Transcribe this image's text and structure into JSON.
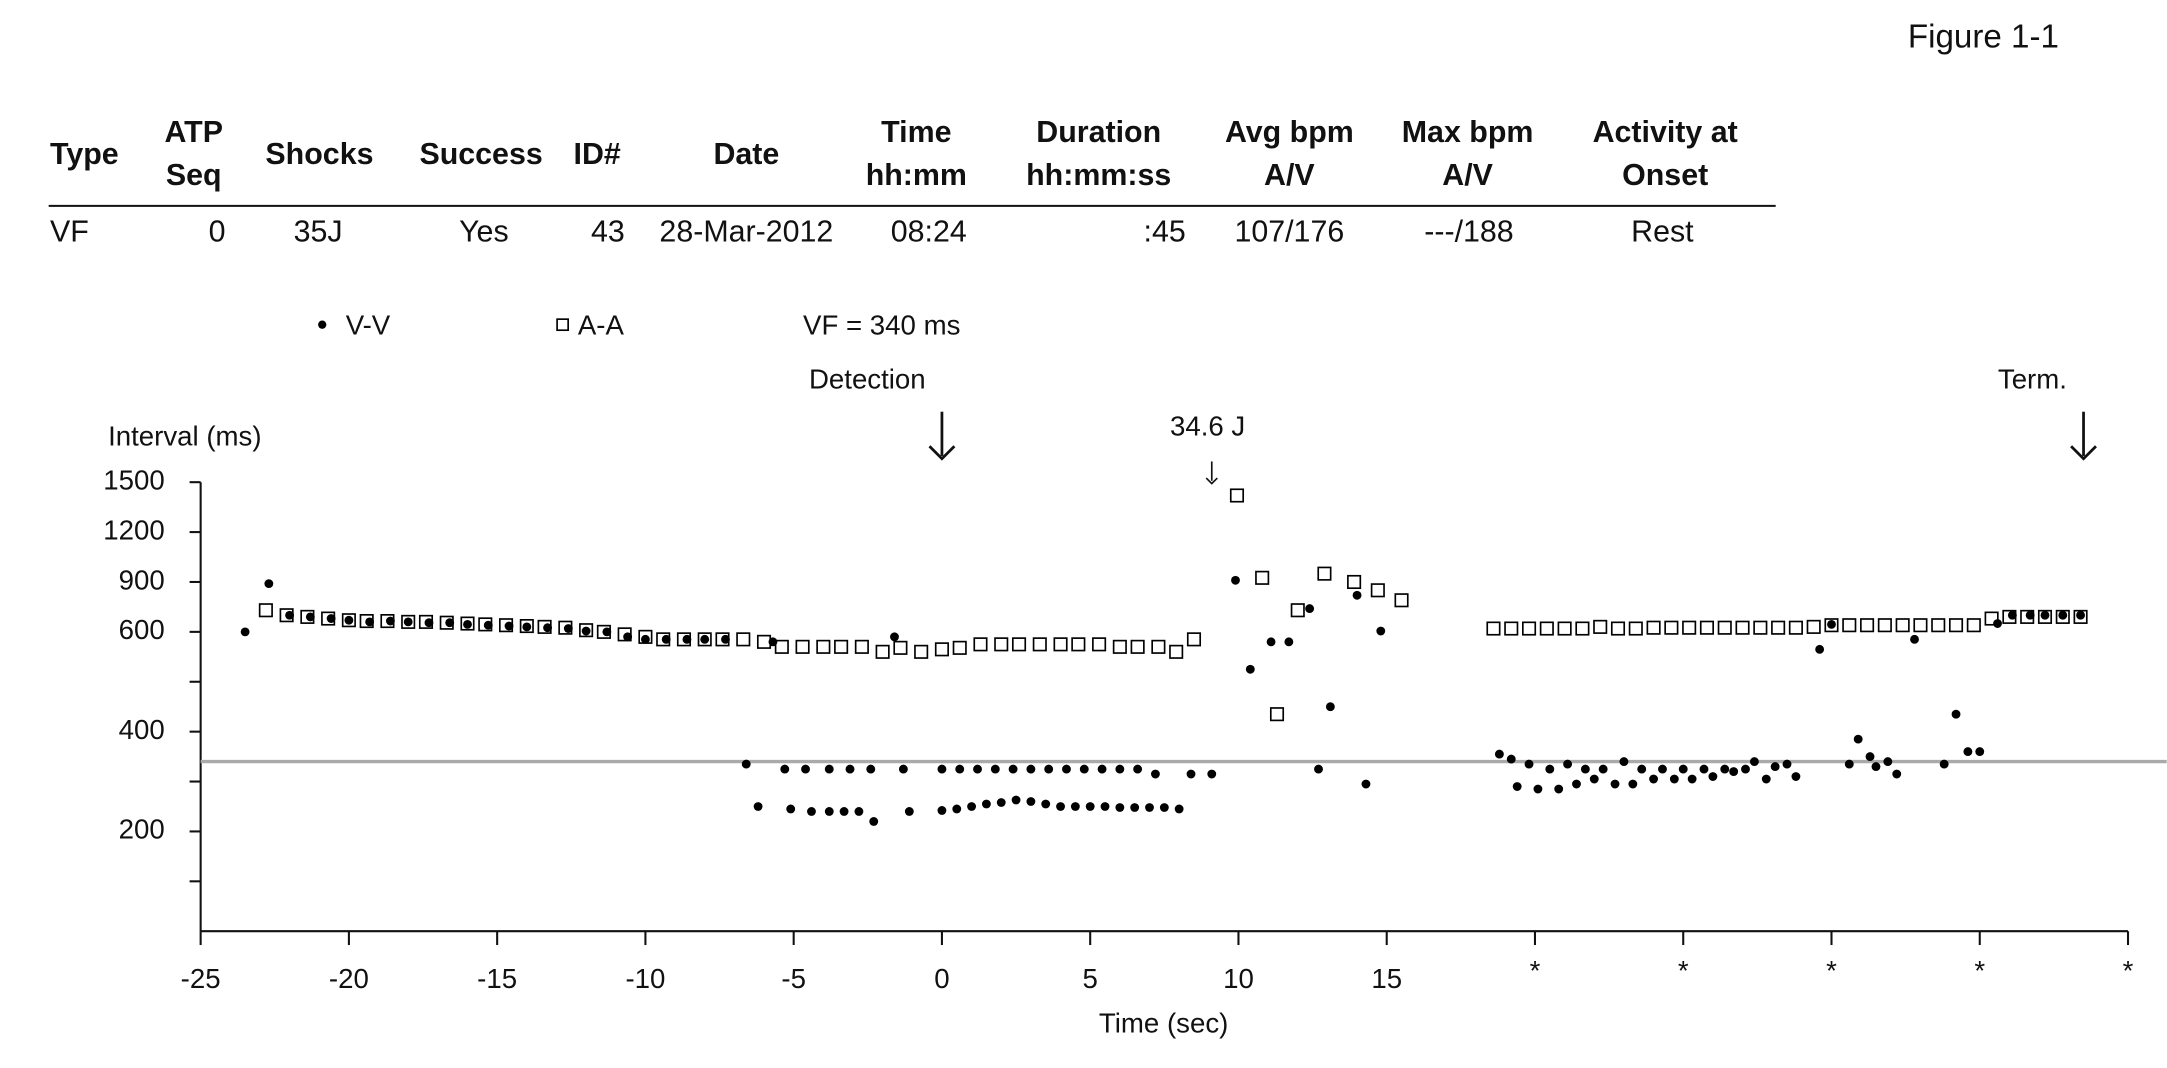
{
  "figure_label": "Figure 1-1",
  "table": {
    "headers": [
      [
        "Type"
      ],
      [
        "ATP",
        "Seq"
      ],
      [
        "Shocks"
      ],
      [
        "Success"
      ],
      [
        "ID#"
      ],
      [
        "Date"
      ],
      [
        "Time",
        "hh:mm"
      ],
      [
        "Duration",
        "hh:mm:ss"
      ],
      [
        "Avg bpm",
        "A/V"
      ],
      [
        "Max bpm",
        "A/V"
      ],
      [
        "Activity at",
        "Onset"
      ]
    ],
    "rows": [
      [
        "VF",
        "0",
        "35J",
        "Yes",
        "43",
        "28-Mar-2012",
        "08:24",
        ":45",
        "107/176",
        "---/188",
        "Rest"
      ]
    ]
  },
  "chart_data": {
    "type": "scatter",
    "ylabel": "Interval (ms)",
    "xlabel": "Time (sec)",
    "xlim": [
      -25,
      40
    ],
    "ylim": [
      0,
      1500
    ],
    "xticks": [
      -25,
      -20,
      -15,
      -10,
      -5,
      0,
      5,
      10,
      15,
      {
        "value": 20,
        "label": "*"
      },
      {
        "value": 25,
        "label": "*"
      },
      {
        "value": 30,
        "label": "*"
      },
      {
        "value": 35,
        "label": "*"
      },
      {
        "value": 40,
        "label": "*"
      }
    ],
    "yticks": [
      200,
      400,
      600,
      900,
      1200,
      1500
    ],
    "yminorticks": [
      100,
      300,
      500
    ],
    "reference_line": {
      "label": "VF = 340 ms",
      "value": 340,
      "color": "#aaaaaa"
    },
    "annotations": [
      {
        "text": "Detection",
        "x": 0
      },
      {
        "text": "34.6 J",
        "x": 9.1
      },
      {
        "text": "Term.",
        "x": 38.5
      }
    ],
    "series": [
      {
        "name": "V-V",
        "marker": "circle",
        "color": "#000000",
        "x": [
          -23.5,
          -22.7,
          -22.0,
          -21.3,
          -20.6,
          -20.0,
          -19.3,
          -18.6,
          -18.0,
          -17.3,
          -16.6,
          -16.0,
          -15.3,
          -14.6,
          -14.0,
          -13.3,
          -12.6,
          -12.0,
          -11.3,
          -10.6,
          -10.0,
          -9.3,
          -8.6,
          -8.0,
          -7.3,
          -6.6,
          -6.2,
          -5.7,
          -5.3,
          -5.1,
          -4.6,
          -4.4,
          -3.8,
          -3.8,
          -3.3,
          -3.1,
          -2.8,
          -2.4,
          -2.3,
          -1.6,
          -1.3,
          -1.1,
          0,
          0.6,
          1.2,
          1.8,
          2.4,
          3,
          3.6,
          4.2,
          4.8,
          5.4,
          6,
          6.6,
          7.2,
          0,
          0.5,
          1,
          1.5,
          2,
          2.5,
          3,
          3.5,
          4,
          4.5,
          5,
          5.5,
          6,
          6.5,
          7,
          7.5,
          8.0,
          8.4,
          9.1,
          9.9,
          10.4,
          11.1,
          11.7,
          12.4,
          12.7,
          13.1,
          14.0,
          14.3,
          14.8,
          18.8,
          19.2,
          19.4,
          19.8,
          20.1,
          20.5,
          20.8,
          21.1,
          21.4,
          21.7,
          22.0,
          22.3,
          22.7,
          23.0,
          23.3,
          23.6,
          24.0,
          24.3,
          24.7,
          25.0,
          25.3,
          25.7,
          26.0,
          26.4,
          26.7,
          27.1,
          27.4,
          27.8,
          28.1,
          28.5,
          28.8,
          29.6,
          30.0,
          30.6,
          30.9,
          31.3,
          31.5,
          31.9,
          32.2,
          32.8,
          33.8,
          34.2,
          34.6,
          35.0,
          35.6,
          36.1,
          36.7,
          37.2,
          37.8,
          38.4
        ],
        "values": [
          600,
          890,
          700,
          690,
          680,
          670,
          660,
          665,
          660,
          655,
          655,
          645,
          640,
          635,
          630,
          625,
          620,
          605,
          600,
          590,
          585,
          585,
          585,
          585,
          585,
          335,
          250,
          580,
          325,
          245,
          325,
          240,
          325,
          240,
          240,
          325,
          240,
          325,
          220,
          590,
          325,
          240,
          325,
          325,
          325,
          325,
          325,
          325,
          325,
          325,
          325,
          325,
          325,
          325,
          315,
          242,
          245,
          250,
          255,
          258,
          263,
          260,
          255,
          250,
          250,
          250,
          250,
          248,
          248,
          248,
          248,
          245,
          315,
          315,
          910,
          525,
          580,
          580,
          740,
          325,
          450,
          820,
          295,
          605,
          355,
          345,
          290,
          335,
          285,
          325,
          285,
          335,
          295,
          325,
          305,
          325,
          295,
          340,
          295,
          325,
          305,
          325,
          305,
          325,
          305,
          325,
          310,
          325,
          320,
          325,
          340,
          305,
          330,
          335,
          310,
          565,
          645,
          335,
          385,
          350,
          330,
          340,
          315,
          585,
          335,
          435,
          360,
          360,
          650,
          700,
          700,
          700,
          700,
          700
        ]
      },
      {
        "name": "A-A",
        "marker": "square",
        "color": "#000000",
        "x": [
          -22.8,
          -22.1,
          -21.4,
          -20.7,
          -20.0,
          -19.4,
          -18.7,
          -18.0,
          -17.4,
          -16.7,
          -16.0,
          -15.4,
          -14.7,
          -14.0,
          -13.4,
          -12.7,
          -12.0,
          -11.4,
          -10.7,
          -10.0,
          -9.4,
          -8.7,
          -8.0,
          -7.4,
          -6.7,
          -6.0,
          -5.4,
          -4.7,
          -4.0,
          -3.4,
          -2.7,
          -2.0,
          -1.4,
          -0.7,
          0.0,
          0.6,
          1.3,
          2.0,
          2.6,
          3.3,
          4.0,
          4.6,
          5.3,
          6.0,
          6.6,
          7.3,
          7.9,
          8.5,
          9.95,
          10.8,
          11.3,
          12.0,
          12.9,
          13.9,
          14.7,
          15.5,
          18.6,
          19.2,
          19.8,
          20.4,
          21.0,
          21.6,
          22.2,
          22.8,
          23.4,
          24.0,
          24.6,
          25.2,
          25.8,
          26.4,
          27.0,
          27.6,
          28.2,
          28.8,
          29.4,
          30.0,
          30.6,
          31.2,
          31.8,
          32.4,
          33.0,
          33.6,
          34.2,
          34.8,
          35.4,
          36.0,
          36.6,
          37.2,
          37.8,
          38.4
        ],
        "values": [
          730,
          700,
          690,
          680,
          670,
          665,
          665,
          660,
          660,
          655,
          650,
          645,
          640,
          635,
          630,
          625,
          610,
          600,
          595,
          590,
          585,
          585,
          585,
          585,
          585,
          580,
          570,
          570,
          570,
          570,
          570,
          560,
          568,
          560,
          565,
          568,
          575,
          575,
          575,
          575,
          575,
          575,
          575,
          570,
          570,
          570,
          560,
          585,
          1420,
          925,
          435,
          730,
          950,
          900,
          850,
          790,
          620,
          620,
          620,
          620,
          620,
          620,
          630,
          620,
          620,
          625,
          625,
          625,
          625,
          625,
          625,
          625,
          625,
          625,
          630,
          640,
          640,
          640,
          640,
          640,
          640,
          640,
          640,
          640,
          680,
          690,
          690,
          690,
          690,
          690
        ]
      }
    ]
  }
}
